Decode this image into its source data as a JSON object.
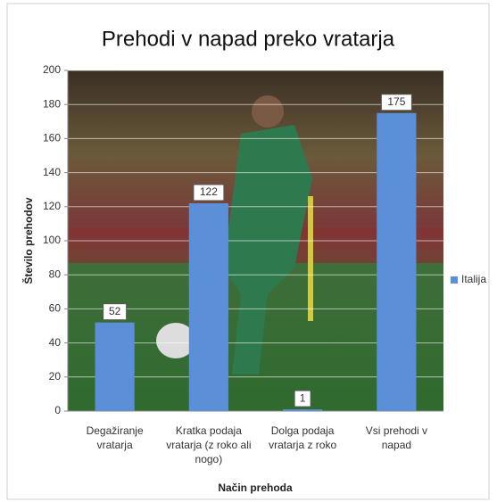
{
  "chart_data": {
    "type": "bar",
    "title": "Prehodi v napad preko vratarja",
    "x_label": "Način prehoda",
    "y_label": "Število prehodov",
    "categories": [
      "Degažiranje vratarja",
      "Kratka podaja vratarja (z roko ali nogo)",
      "Dolga podaja vratarja z roko",
      "Vsi prehodi v napad"
    ],
    "series": [
      {
        "name": "Italija",
        "color": "#5b8fd8",
        "values": [
          52,
          122,
          1,
          175
        ]
      }
    ],
    "ylim": [
      0,
      200
    ],
    "yticks": [
      0,
      20,
      40,
      60,
      80,
      100,
      120,
      140,
      160,
      180,
      200
    ],
    "grid": true,
    "legend": "right"
  }
}
